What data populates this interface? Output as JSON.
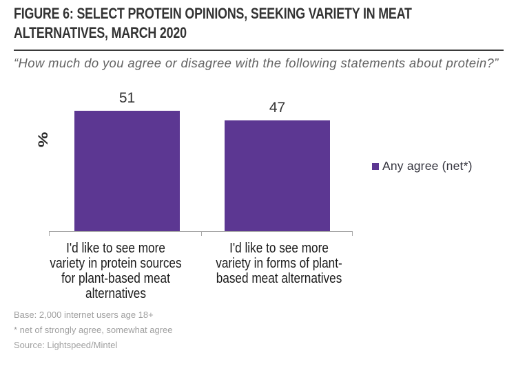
{
  "header": {
    "title": "FIGURE 6: SELECT PROTEIN OPINIONS, SEEKING VARIETY IN MEAT ALTERNATIVES, MARCH 2020",
    "question": "“How much do you agree or disagree with the following statements about protein?”"
  },
  "chart_data": {
    "type": "bar",
    "title": "FIGURE 6: SELECT PROTEIN OPINIONS, SEEKING VARIETY IN MEAT ALTERNATIVES, MARCH 2020",
    "categories": [
      "I'd like to see more variety in protein sources for plant-based meat alternatives",
      "I'd like to see more variety in forms of plant-based meat alternatives"
    ],
    "category_lines": [
      [
        "I'd like to see more",
        "variety in protein sources",
        "for plant-based meat",
        "alternatives"
      ],
      [
        "I'd like to see more",
        "variety in forms of plant-",
        "based meat alternatives"
      ]
    ],
    "values": [
      51,
      47
    ],
    "series": [
      {
        "name": "Any agree (net*)",
        "values": [
          51,
          47
        ]
      }
    ],
    "ylabel": "%",
    "xlabel": "",
    "legend": [
      "Any agree (net*)"
    ],
    "legend_position": "right",
    "bar_color": "#5c3792",
    "ylim": [
      0,
      60
    ],
    "grid": false
  },
  "footnotes": [
    "Base: 2,000 internet users age 18+",
    "* net of strongly agree, somewhat agree",
    "Source: Lightspeed/Mintel"
  ]
}
